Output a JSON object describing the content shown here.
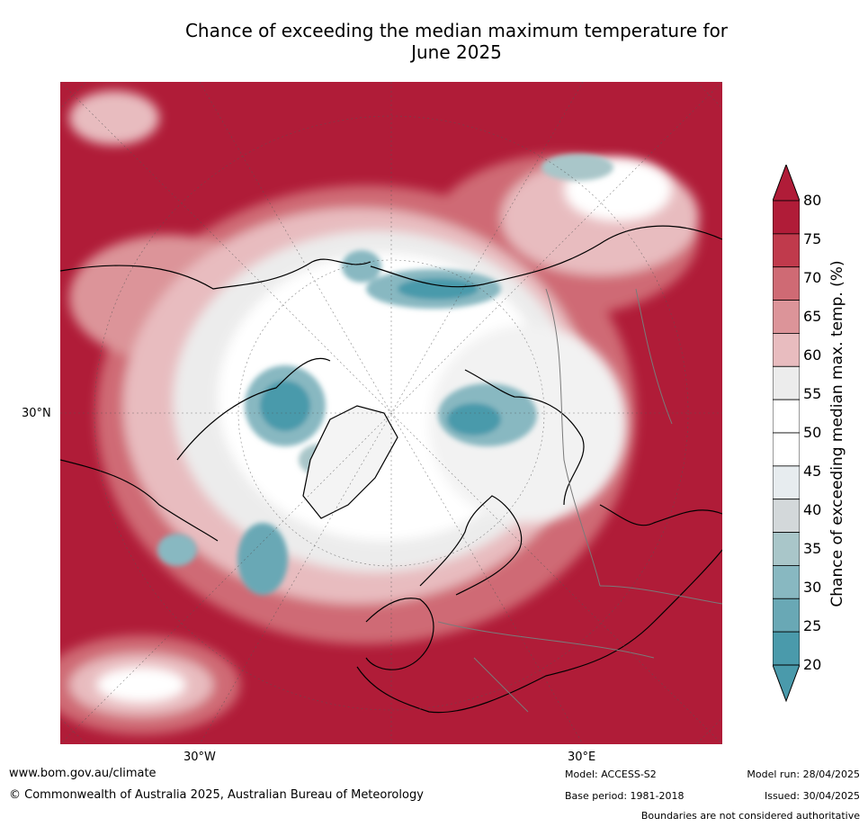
{
  "title": {
    "line1": "Chance of exceeding the median maximum temperature for",
    "line2": "June 2025"
  },
  "map": {
    "axis_labels": {
      "lat_left": "30°N",
      "lon_bottom_left": "30°W",
      "lon_bottom_right": "30°E"
    },
    "colors": {
      "c80": "#b01c38",
      "c75": "#c03a4c",
      "c70": "#cf6a74",
      "c65": "#dc9499",
      "c60": "#e8bcbf",
      "c55": "#ececec",
      "c50": "#ffffff",
      "c45": "#e7ecef",
      "c40": "#d3d8da",
      "c35": "#a9c6c9",
      "c30": "#88b8c1",
      "c25": "#69a8b5",
      "c20": "#4a9aab"
    }
  },
  "colorbar": {
    "label": "Chance of exceeding median max. temp. (%)",
    "ticks": [
      "80",
      "75",
      "70",
      "65",
      "60",
      "55",
      "50",
      "45",
      "40",
      "35",
      "30",
      "25",
      "20"
    ],
    "colors": [
      "#b01c38",
      "#c03a4c",
      "#cf6a74",
      "#dc9499",
      "#e8bcbf",
      "#ececec",
      "#ffffff",
      "#ffffff",
      "#e7ecef",
      "#d3d8da",
      "#a9c6c9",
      "#88b8c1",
      "#69a8b5",
      "#4a9aab"
    ]
  },
  "footer": {
    "website": "www.bom.gov.au/climate",
    "copyright": "© Commonwealth of Australia 2025, Australian Bureau of Meteorology",
    "model": "Model: ACCESS-S2",
    "base_period": "Base period: 1981-2018",
    "model_run": "Model run: 28/04/2025",
    "issued": "Issued: 30/04/2025",
    "disclaimer": "Boundaries are not considered authoritative"
  }
}
